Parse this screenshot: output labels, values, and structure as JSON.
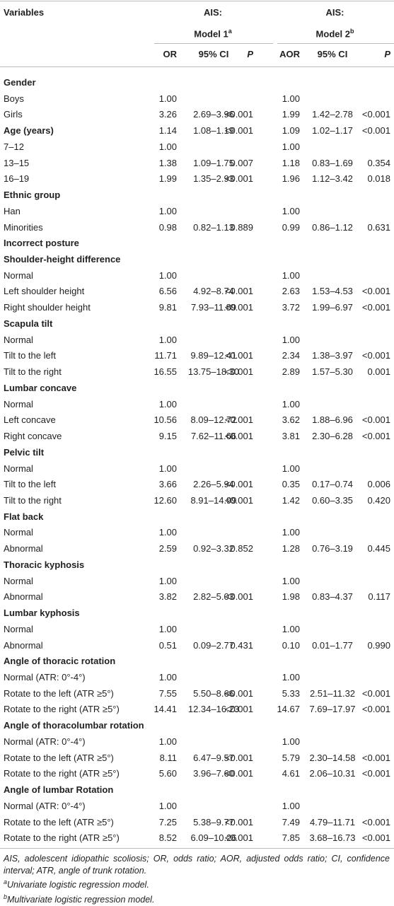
{
  "table": {
    "header": {
      "variables": "Variables",
      "group1": {
        "title": "AIS:",
        "model": "Model 1",
        "sup": "a"
      },
      "group2": {
        "title": "AIS:",
        "model": "Model 2",
        "sup": "b"
      },
      "columns": [
        "OR",
        "95% CI",
        "P",
        "AOR",
        "95% CI",
        "P"
      ]
    },
    "rows": [
      {
        "heading": "Gender"
      },
      {
        "label": "Boys",
        "or": "1.00",
        "aor": "1.00"
      },
      {
        "label": "Girls",
        "or": "3.26",
        "or_ci": "2.69–3.96",
        "or_p": "<0.001",
        "aor": "1.99",
        "aor_ci": "1.42–2.78",
        "aor_p": "<0.001"
      },
      {
        "heading": "Age (years)",
        "or": "1.14",
        "or_ci": "1.08–1.19",
        "or_p": "<0.001",
        "aor": "1.09",
        "aor_ci": "1.02–1.17",
        "aor_p": "<0.001"
      },
      {
        "label": "7–12",
        "or": "1.00",
        "aor": "1.00"
      },
      {
        "label": "13–15",
        "or": "1.38",
        "or_ci": "1.09–1.75",
        "or_p": "0.007",
        "aor": "1.18",
        "aor_ci": "0.83–1.69",
        "aor_p": "0.354"
      },
      {
        "label": "16–19",
        "or": "1.99",
        "or_ci": "1.35–2.93",
        "or_p": "<0.001",
        "aor": "1.96",
        "aor_ci": "1.12–3.42",
        "aor_p": "0.018"
      },
      {
        "heading": "Ethnic group"
      },
      {
        "label": "Han",
        "or": "1.00",
        "aor": "1.00"
      },
      {
        "label": "Minorities",
        "or": "0.98",
        "or_ci": "0.82–1.13",
        "or_p": "0.889",
        "aor": "0.99",
        "aor_ci": "0.86–1.12",
        "aor_p": "0.631"
      },
      {
        "heading": "Incorrect posture"
      },
      {
        "heading": "Shoulder-height difference"
      },
      {
        "label": "Normal",
        "or": "1.00",
        "aor": "1.00"
      },
      {
        "label": "Left shoulder height",
        "or": "6.56",
        "or_ci": "4.92–8.74",
        "or_p": "<0.001",
        "aor": "2.63",
        "aor_ci": "1.53–4.53",
        "aor_p": "<0.001"
      },
      {
        "label": "Right shoulder height",
        "or": "9.81",
        "or_ci": "7.93–11.89",
        "or_p": "<0.001",
        "aor": "3.72",
        "aor_ci": "1.99–6.97",
        "aor_p": "<0.001"
      },
      {
        "heading": "Scapula tilt"
      },
      {
        "label": "Normal",
        "or": "1.00",
        "aor": "1.00"
      },
      {
        "label": "Tilt to the left",
        "or": "11.71",
        "or_ci": "9.89–12.41",
        "or_p": "<0.001",
        "aor": "2.34",
        "aor_ci": "1.38–3.97",
        "aor_p": "<0.001"
      },
      {
        "label": "Tilt to the right",
        "or": "16.55",
        "or_ci": "13.75–18.30",
        "or_p": "<0.001",
        "aor": "2.89",
        "aor_ci": "1.57–5.30",
        "aor_p": "0.001"
      },
      {
        "heading": "Lumbar concave"
      },
      {
        "label": "Normal",
        "or": "1.00",
        "aor": "1.00"
      },
      {
        "label": "Left concave",
        "or": "10.56",
        "or_ci": "8.09–12.72",
        "or_p": "<0.001",
        "aor": "3.62",
        "aor_ci": "1.88–6.96",
        "aor_p": "<0.001"
      },
      {
        "label": "Right concave",
        "or": "9.15",
        "or_ci": "7.62–11.66",
        "or_p": "<0.001",
        "aor": "3.81",
        "aor_ci": "2.30–6.28",
        "aor_p": "<0.001"
      },
      {
        "heading": "Pelvic tilt"
      },
      {
        "label": "Normal",
        "or": "1.00",
        "aor": "1.00"
      },
      {
        "label": "Tilt to the left",
        "or": "3.66",
        "or_ci": "2.26–5.94",
        "or_p": "<0.001",
        "aor": "0.35",
        "aor_ci": "0.17–0.74",
        "aor_p": "0.006"
      },
      {
        "label": "Tilt to the right",
        "or": "12.60",
        "or_ci": "8.91–14.99",
        "or_p": "<0.001",
        "aor": "1.42",
        "aor_ci": "0.60–3.35",
        "aor_p": "0.420"
      },
      {
        "heading": "Flat back"
      },
      {
        "label": "Normal",
        "or": "1.00",
        "aor": "1.00"
      },
      {
        "label": "Abnormal",
        "or": "2.59",
        "or_ci": "0.92–3.32",
        "or_p": "0.852",
        "aor": "1.28",
        "aor_ci": "0.76–3.19",
        "aor_p": "0.445"
      },
      {
        "heading": "Thoracic kyphosis"
      },
      {
        "label": "Normal",
        "or": "1.00",
        "aor": "1.00"
      },
      {
        "label": "Abnormal",
        "or": "3.82",
        "or_ci": "2.82–5.03",
        "or_p": "<0.001",
        "aor": "1.98",
        "aor_ci": "0.83–4.37",
        "aor_p": "0.117"
      },
      {
        "heading": "Lumbar kyphosis"
      },
      {
        "label": "Normal",
        "or": "1.00",
        "aor": "1.00"
      },
      {
        "label": "Abnormal",
        "or": "0.51",
        "or_ci": "0.09–2.77",
        "or_p": "0.431",
        "aor": "0.10",
        "aor_ci": "0.01–1.77",
        "aor_p": "0.990"
      },
      {
        "heading": "Angle of thoracic rotation"
      },
      {
        "label": "Normal (ATR: 0°-4°)",
        "or": "1.00",
        "aor": "1.00"
      },
      {
        "label": "Rotate to the left (ATR ≥5°)",
        "or": "7.55",
        "or_ci": "5.50–8.66",
        "or_p": "<0.001",
        "aor": "5.33",
        "aor_ci": "2.51–11.32",
        "aor_p": "<0.001"
      },
      {
        "label": "Rotate to the right (ATR ≥5°)",
        "or": "14.41",
        "or_ci": "12.34–16.23",
        "or_p": "<0.001",
        "aor": "14.67",
        "aor_ci": "7.69–17.97",
        "aor_p": "<0.001"
      },
      {
        "heading": "Angle of thoracolumbar rotation"
      },
      {
        "label": "Normal (ATR: 0°-4°)",
        "or": "1.00",
        "aor": "1.00"
      },
      {
        "label": "Rotate to the left (ATR ≥5°)",
        "or": "8.11",
        "or_ci": "6.47–9.57",
        "or_p": "<0.001",
        "aor": "5.79",
        "aor_ci": "2.30–14.58",
        "aor_p": "<0.001"
      },
      {
        "label": "Rotate to the right (ATR ≥5°)",
        "or": "5.60",
        "or_ci": "3.96–7.60",
        "or_p": "<0.001",
        "aor": "4.61",
        "aor_ci": "2.06–10.31",
        "aor_p": "<0.001"
      },
      {
        "heading": "Angle of lumbar Rotation"
      },
      {
        "label": "Normal (ATR: 0°-4°)",
        "or": "1.00",
        "aor": "1.00"
      },
      {
        "label": "Rotate to the left (ATR ≥5°)",
        "or": "7.25",
        "or_ci": "5.38–9.77",
        "or_p": "<0.001",
        "aor": "7.49",
        "aor_ci": "4.79–11.71",
        "aor_p": "<0.001"
      },
      {
        "label": "Rotate to the right (ATR ≥5°)",
        "or": "8.52",
        "or_ci": "6.09–10.26",
        "or_p": "<0.001",
        "aor": "7.85",
        "aor_ci": "3.68–16.73",
        "aor_p": "<0.001"
      }
    ],
    "notes": {
      "abbreviations": "AIS, adolescent idiopathic scoliosis; OR, odds ratio; AOR, adjusted odds ratio; CI, confidence interval; ATR, angle of trunk rotation.",
      "footnotes": [
        {
          "mark": "a",
          "text": "Univariate logistic regression model."
        },
        {
          "mark": "b",
          "text": "Multivariate logistic regression model."
        }
      ]
    }
  }
}
